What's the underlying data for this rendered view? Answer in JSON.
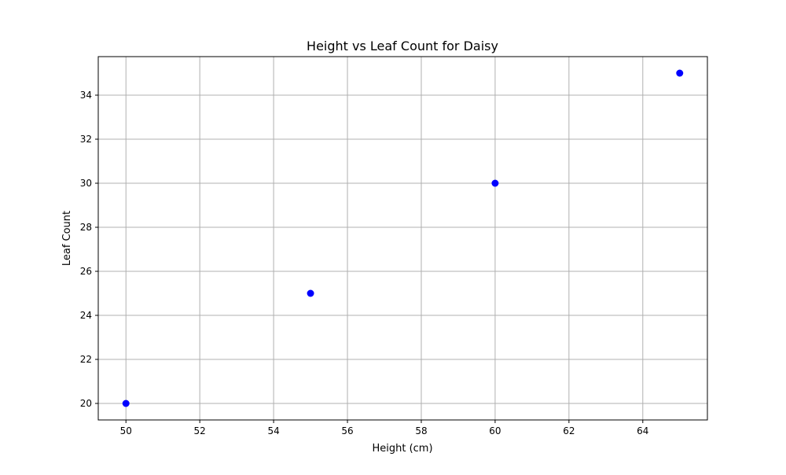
{
  "chart_data": {
    "type": "scatter",
    "title": "Height vs Leaf Count for Daisy",
    "xlabel": "Height (cm)",
    "ylabel": "Leaf Count",
    "x": [
      50,
      55,
      60,
      65
    ],
    "y": [
      20,
      25,
      30,
      35
    ],
    "xlim": [
      49.25,
      65.75
    ],
    "ylim": [
      19.25,
      35.75
    ],
    "xticks": [
      50,
      52,
      54,
      56,
      58,
      60,
      62,
      64
    ],
    "yticks": [
      20,
      22,
      24,
      26,
      28,
      30,
      32,
      34
    ],
    "grid": true,
    "marker_color": "#0000ff",
    "grid_color": "#b0b0b0"
  }
}
